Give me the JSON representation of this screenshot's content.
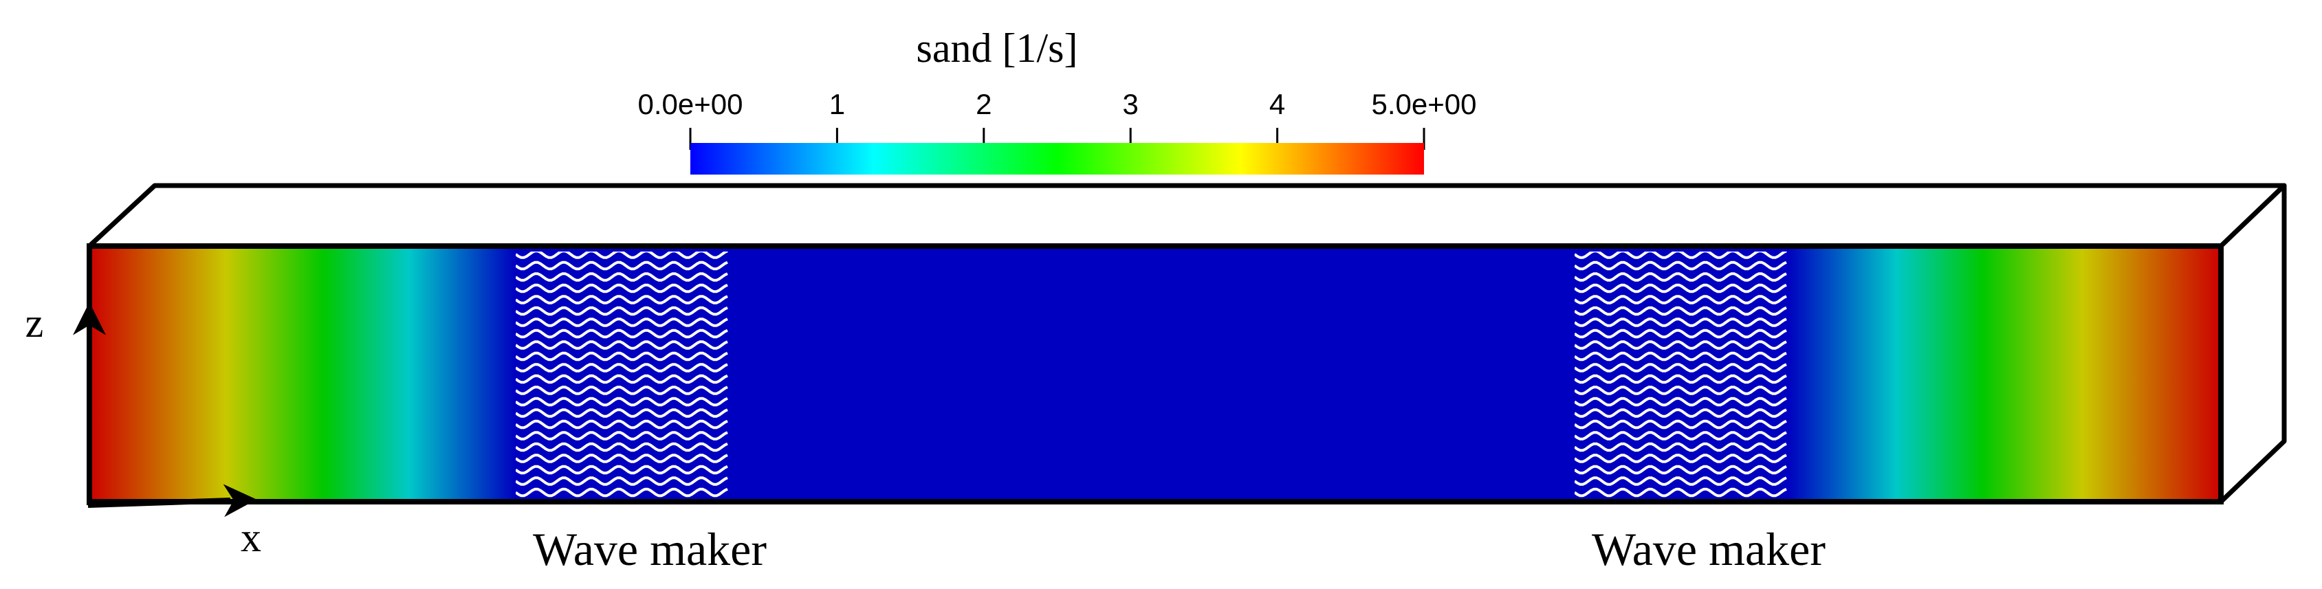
{
  "colorbar": {
    "title": "sand [1/s]",
    "min": 0,
    "max": 5,
    "ticks": [
      {
        "value": 0,
        "label": "0.0e+00"
      },
      {
        "value": 1,
        "label": "1"
      },
      {
        "value": 2,
        "label": "2"
      },
      {
        "value": 3,
        "label": "3"
      },
      {
        "value": 4,
        "label": "4"
      },
      {
        "value": 5,
        "label": "5.0e+00"
      }
    ],
    "colormap": [
      "#0000ff",
      "#00ffff",
      "#00ff00",
      "#ffff00",
      "#ff0000"
    ]
  },
  "axes": {
    "x_label": "x",
    "z_label": "z"
  },
  "wave_makers": [
    {
      "label": "Wave maker"
    },
    {
      "label": "Wave maker"
    }
  ],
  "colors": {
    "background_field": "#0000c0",
    "damping_left": [
      "#cc0000",
      "#c8c800",
      "#00c800",
      "#00c8c8",
      "#0000c0"
    ],
    "damping_right": [
      "#0000c0",
      "#00c8c8",
      "#00c800",
      "#c8c800",
      "#cc0000"
    ],
    "wave_lines": "#ffffff",
    "outline": "#000000"
  }
}
